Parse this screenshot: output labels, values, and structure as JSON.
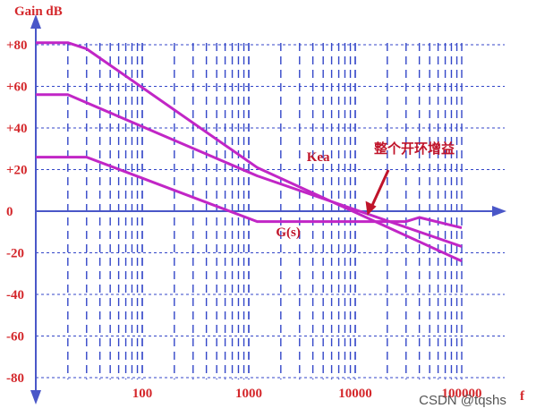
{
  "chart_data": {
    "type": "line",
    "ylabel": "Gain dB",
    "xlabel": "f",
    "x_scale": "log",
    "xlim": [
      10,
      100000
    ],
    "ylim": [
      -80,
      80
    ],
    "grid": true,
    "y_ticks": [
      80,
      60,
      40,
      20,
      0,
      -20,
      -40,
      -60,
      -80
    ],
    "y_tick_labels": [
      "+80",
      "+60",
      "+40",
      "+20",
      "0",
      "-20",
      "-40",
      "-60",
      "-80"
    ],
    "x_ticks": [
      100,
      1000,
      10000,
      100000
    ],
    "x_tick_labels": [
      "100",
      "1000",
      "10000",
      "100000"
    ],
    "series": [
      {
        "name": "",
        "x": [
          10,
          20,
          30,
          1200,
          100000
        ],
        "y": [
          81,
          81,
          78,
          21,
          -24
        ]
      },
      {
        "name": "",
        "x": [
          10,
          20,
          1200,
          100000
        ],
        "y": [
          56,
          56,
          17,
          -17
        ]
      },
      {
        "name": "G(s)",
        "x": [
          10,
          30,
          1200,
          30000,
          40000,
          100000
        ],
        "y": [
          26,
          26,
          -5,
          -5,
          -3,
          -8
        ]
      }
    ],
    "annotations": [
      {
        "text": "Kea",
        "x": 3500,
        "y": 24
      },
      {
        "text": "G(s)",
        "x": 1800,
        "y": -12
      },
      {
        "text": "整个开环增益",
        "x": 15000,
        "y": 28
      }
    ],
    "colors": {
      "series": "#c126c6",
      "axis": "#4a57c8",
      "grid": "#3346c8",
      "labels": "#d4272b",
      "arrow": "#c0142a"
    }
  },
  "watermark": "CSDN @tqshs"
}
